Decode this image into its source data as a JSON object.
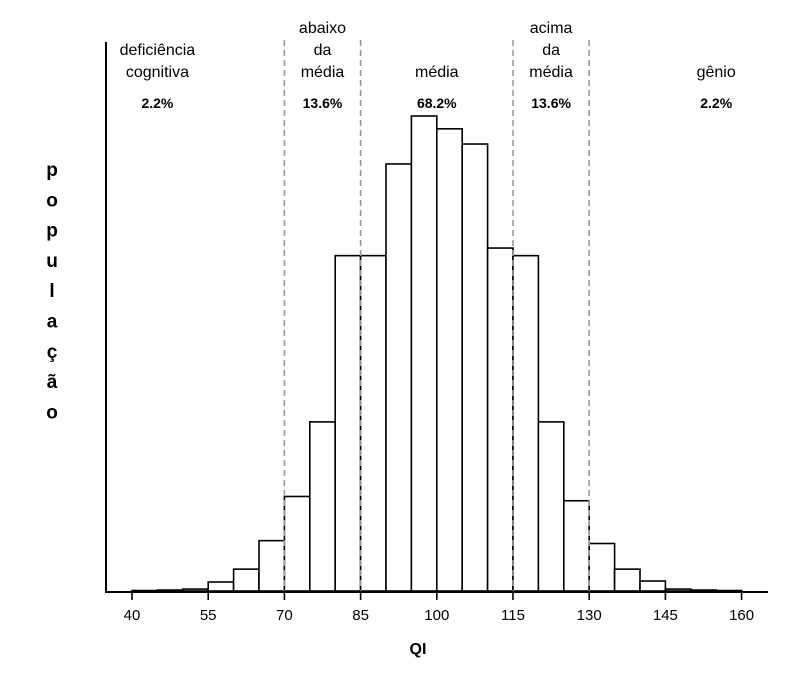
{
  "chart_data": {
    "type": "bar",
    "title": "",
    "xlabel": "QI",
    "ylabel": "população",
    "xlim": [
      35,
      165
    ],
    "ylim": [
      0,
      100
    ],
    "grid": false,
    "x_ticks": [
      40,
      55,
      70,
      85,
      100,
      115,
      130,
      145,
      160
    ],
    "bin_width": 5,
    "bins": [
      {
        "start": 40,
        "value": 0.1
      },
      {
        "start": 45,
        "value": 0.2
      },
      {
        "start": 50,
        "value": 0.4
      },
      {
        "start": 55,
        "value": 1.9
      },
      {
        "start": 60,
        "value": 4.6
      },
      {
        "start": 65,
        "value": 10.6
      },
      {
        "start": 70,
        "value": 19.9
      },
      {
        "start": 75,
        "value": 35.6
      },
      {
        "start": 80,
        "value": 70.6
      },
      {
        "start": 85,
        "value": 70.6
      },
      {
        "start": 90,
        "value": 89.9
      },
      {
        "start": 95,
        "value": 100.0
      },
      {
        "start": 100,
        "value": 97.3
      },
      {
        "start": 105,
        "value": 94.1
      },
      {
        "start": 110,
        "value": 72.2
      },
      {
        "start": 115,
        "value": 70.6
      },
      {
        "start": 120,
        "value": 35.6
      },
      {
        "start": 125,
        "value": 19.0
      },
      {
        "start": 130,
        "value": 10.0
      },
      {
        "start": 135,
        "value": 4.6
      },
      {
        "start": 140,
        "value": 2.1
      },
      {
        "start": 145,
        "value": 0.4
      },
      {
        "start": 150,
        "value": 0.2
      },
      {
        "start": 155,
        "value": 0.1
      }
    ],
    "dividers": [
      70,
      85,
      115,
      130
    ],
    "zones": [
      {
        "name_lines": [
          "deficiência",
          "cognitiva"
        ],
        "percent": "2.2%",
        "center_x": 45
      },
      {
        "name_lines": [
          "abaixo",
          "da",
          "média"
        ],
        "percent": "13.6%",
        "center_x": 77.5
      },
      {
        "name_lines": [
          "média"
        ],
        "percent": "68.2%",
        "center_x": 100
      },
      {
        "name_lines": [
          "acima",
          "da",
          "média"
        ],
        "percent": "13.6%",
        "center_x": 122.5
      },
      {
        "name_lines": [
          "gênio"
        ],
        "percent": "2.2%",
        "center_x": 155
      }
    ]
  }
}
